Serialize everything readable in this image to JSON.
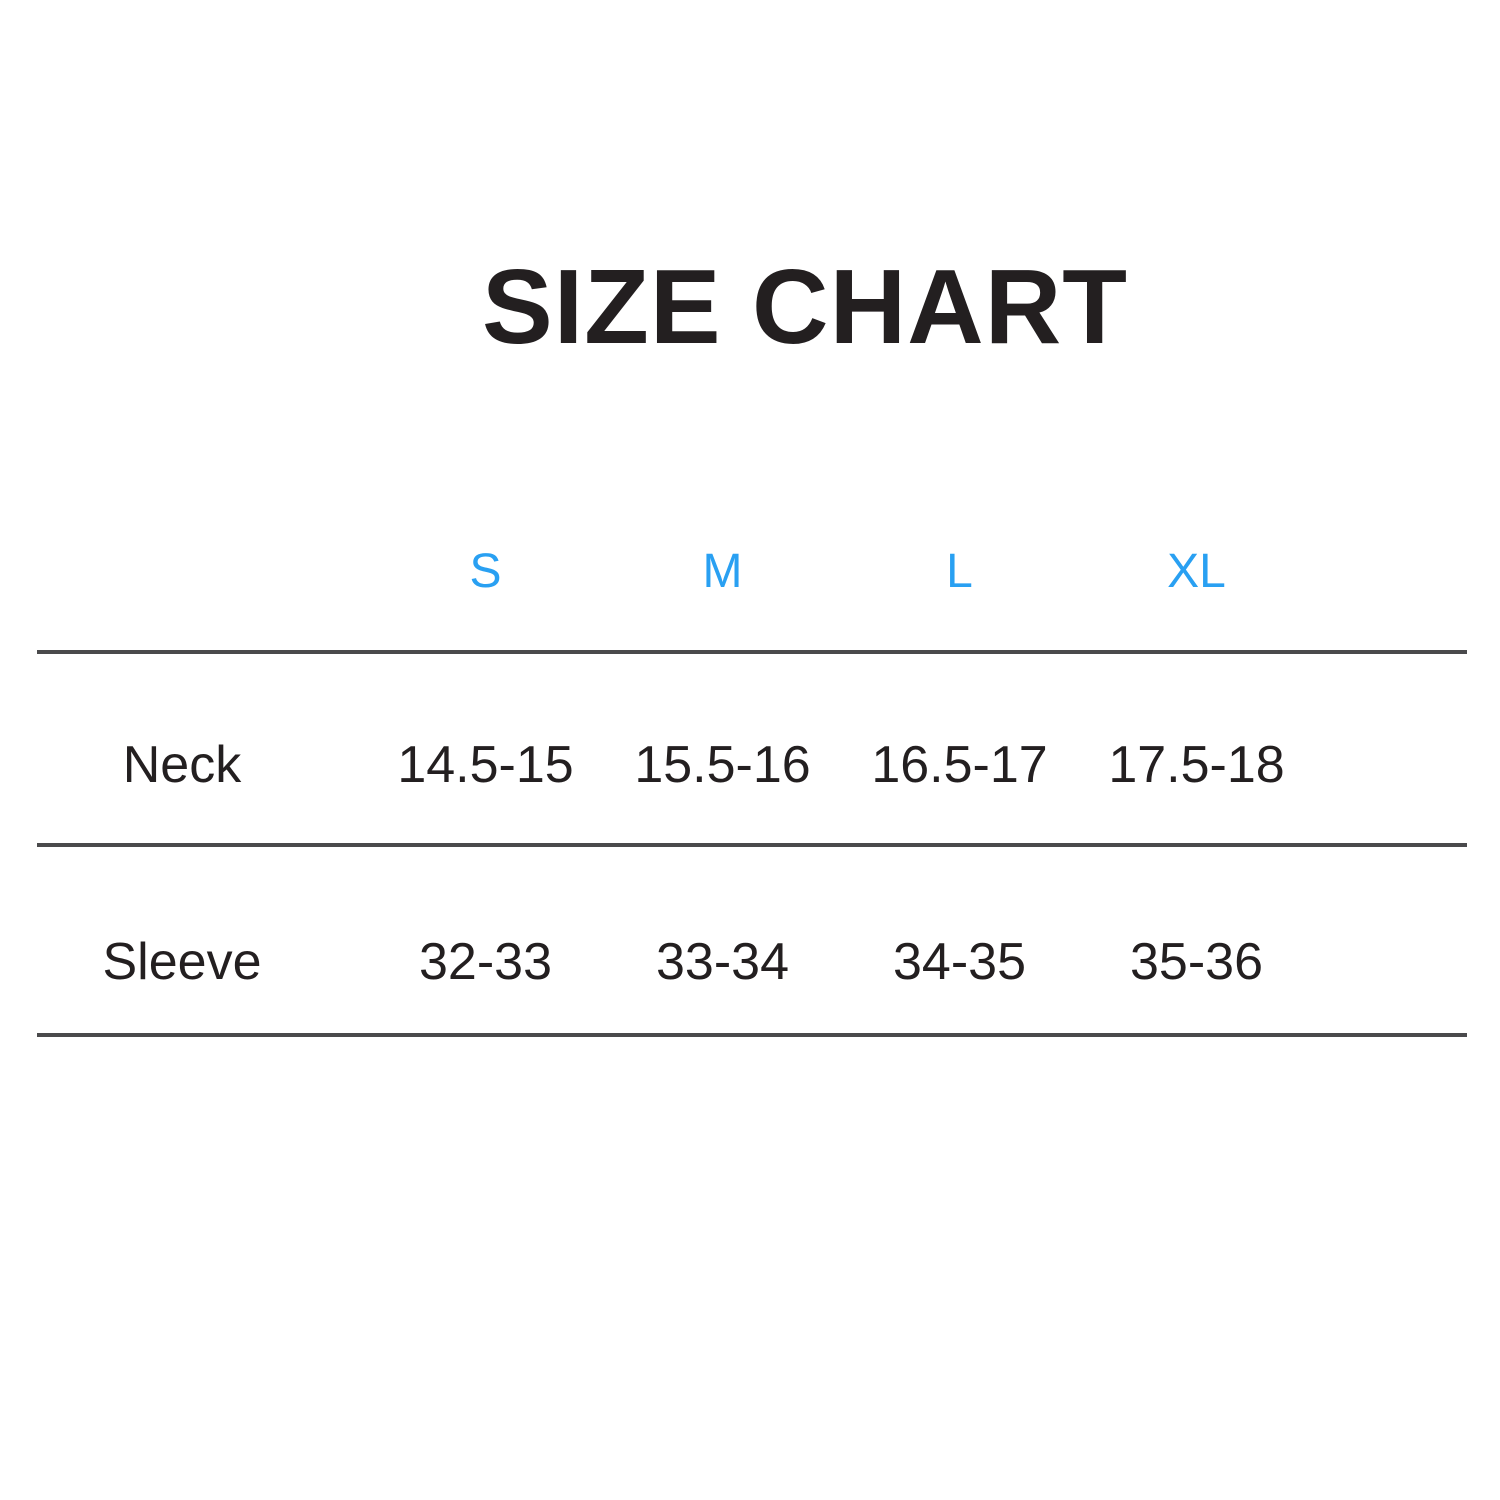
{
  "title": "SIZE CHART",
  "colors": {
    "text": "#231F20",
    "accent_blue": "#29A0F2",
    "rule": "#4A4A4C",
    "background": "#FFFFFF"
  },
  "chart_data": {
    "type": "table",
    "title": "SIZE CHART",
    "columns": [
      "S",
      "M",
      "L",
      "XL"
    ],
    "rows": [
      {
        "label": "Neck",
        "values": [
          "14.5-15",
          "15.5-16",
          "16.5-17",
          "17.5-18"
        ]
      },
      {
        "label": "Sleeve",
        "values": [
          "32-33",
          "33-34",
          "34-35",
          "35-36"
        ]
      }
    ],
    "layout_hints": {
      "header_color": "accent_blue",
      "dividers": "horizontal rules above/below each data row",
      "label_column": "left",
      "grid": "off"
    }
  }
}
